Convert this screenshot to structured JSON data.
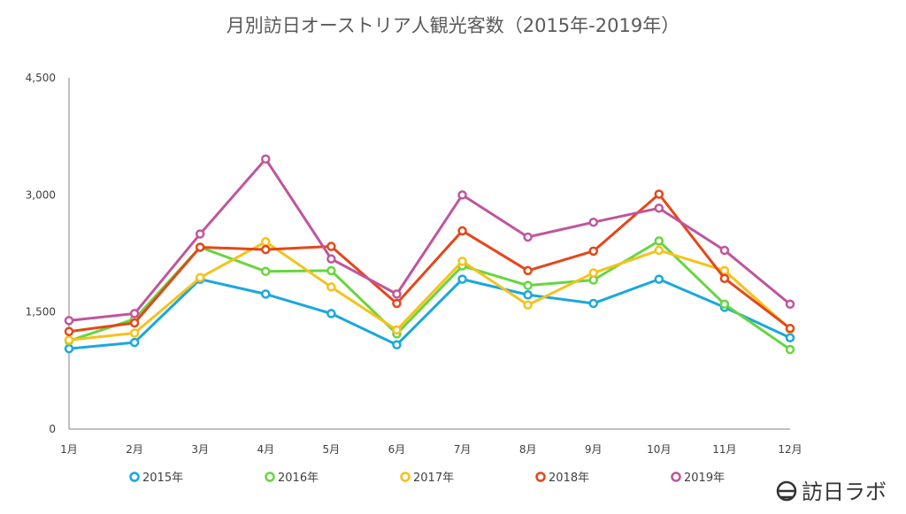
{
  "chart_data": {
    "type": "line",
    "title": "月別訪日オーストリア人観光客数（2015年-2019年）",
    "categories": [
      "1月",
      "2月",
      "3月",
      "4月",
      "5月",
      "6月",
      "7月",
      "8月",
      "9月",
      "10月",
      "11月",
      "12月"
    ],
    "ylim": [
      0,
      4500
    ],
    "yticks": [
      0,
      1500,
      3000,
      4500
    ],
    "ytick_labels": [
      "0",
      "1,500",
      "3,000",
      "4,500"
    ],
    "grid": false,
    "legend_position": "bottom",
    "series": [
      {
        "name": "2015年",
        "color": "#1aa7e0",
        "values": [
          1030,
          1110,
          1920,
          1730,
          1480,
          1080,
          1920,
          1720,
          1610,
          1920,
          1560,
          1170
        ]
      },
      {
        "name": "2016年",
        "color": "#66d63e",
        "values": [
          1130,
          1410,
          2330,
          2020,
          2030,
          1220,
          2090,
          1840,
          1910,
          2410,
          1600,
          1020
        ]
      },
      {
        "name": "2017年",
        "color": "#f5c21b",
        "values": [
          1140,
          1230,
          1940,
          2400,
          1820,
          1270,
          2150,
          1590,
          2000,
          2290,
          2030,
          1280
        ]
      },
      {
        "name": "2018年",
        "color": "#e64619",
        "values": [
          1250,
          1360,
          2330,
          2300,
          2340,
          1610,
          2540,
          2030,
          2280,
          3010,
          1930,
          1290
        ]
      },
      {
        "name": "2019年",
        "color": "#c0559c",
        "values": [
          1390,
          1480,
          2500,
          3460,
          2180,
          1730,
          3000,
          2460,
          2650,
          2830,
          2290,
          1600
        ]
      }
    ]
  },
  "logo": {
    "text": "訪日ラボ"
  }
}
